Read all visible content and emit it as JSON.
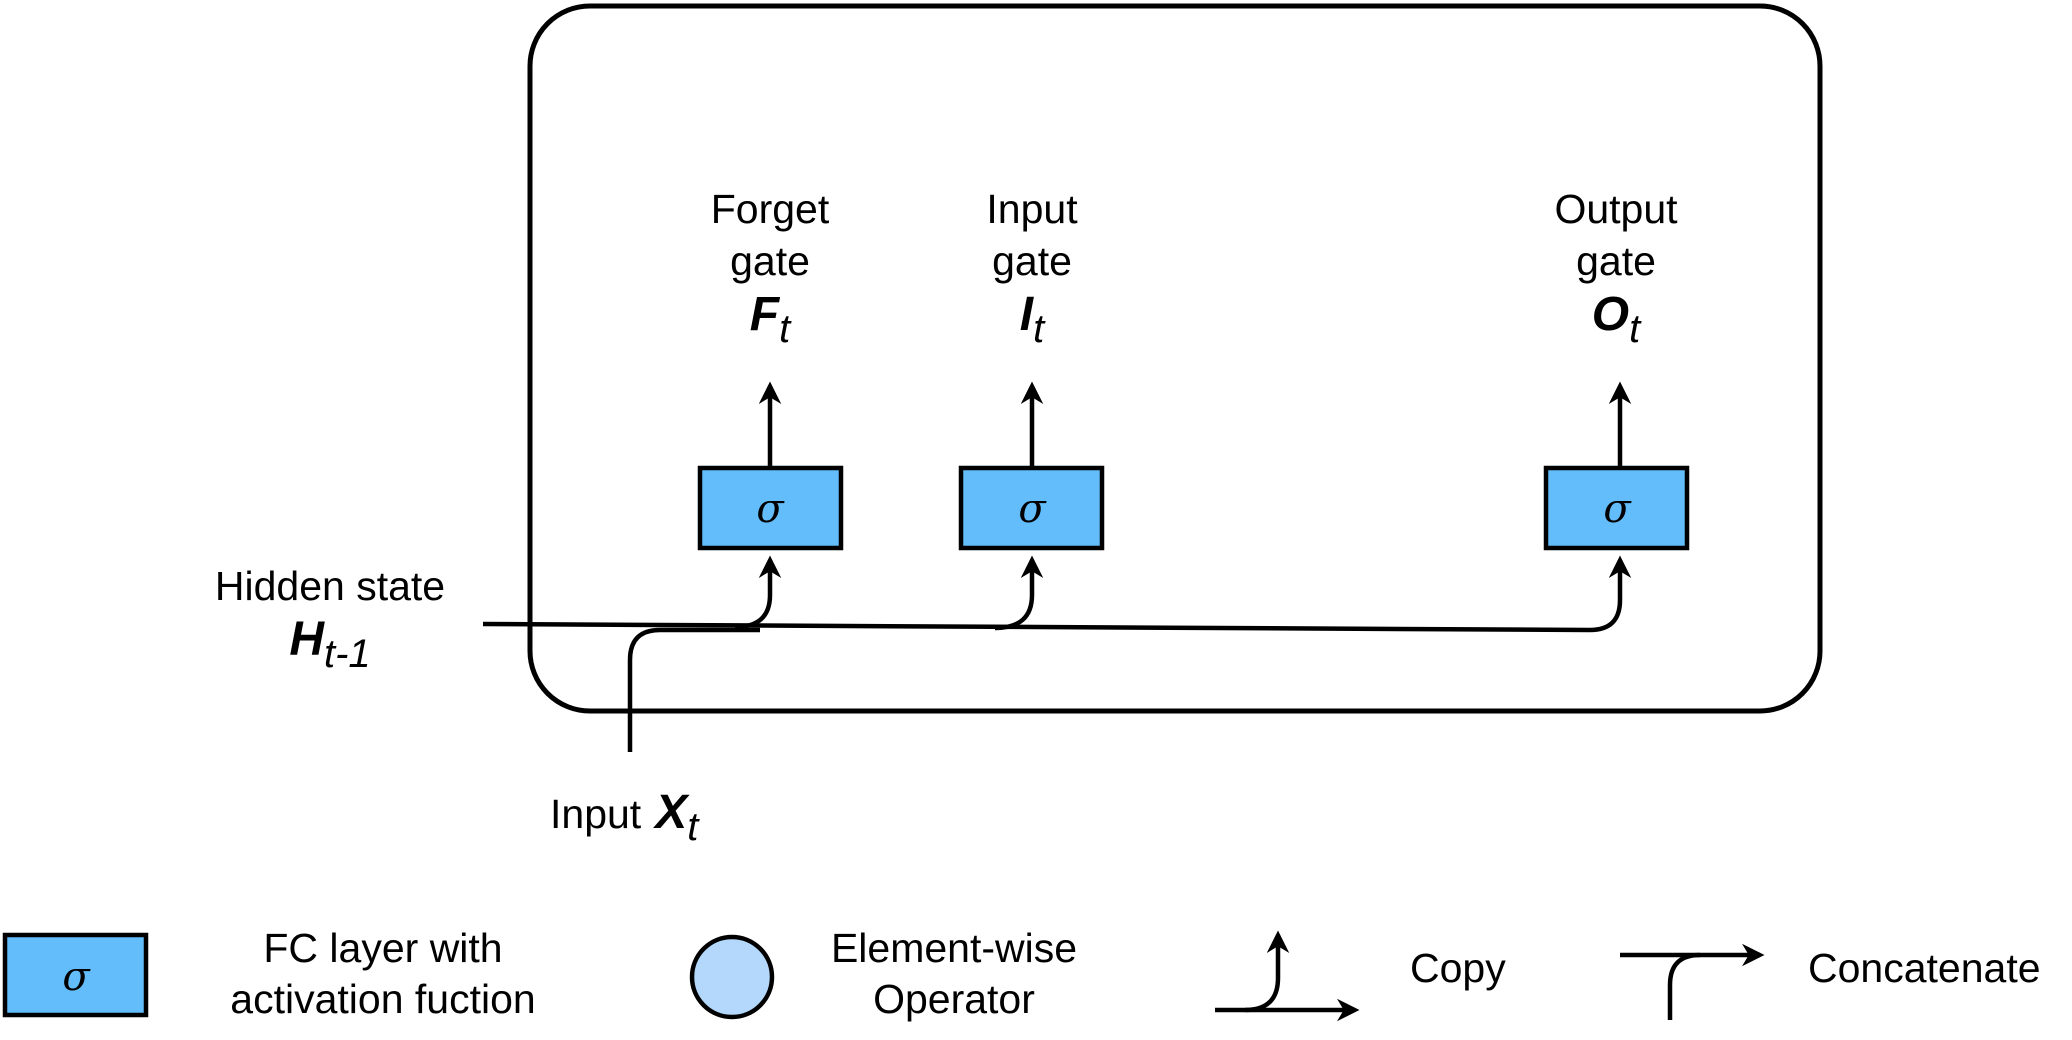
{
  "diagram": {
    "gates": [
      {
        "label_line1": "Forget",
        "label_line2": "gate",
        "symbol": "F",
        "subscript": "t",
        "activation": "σ"
      },
      {
        "label_line1": "Input",
        "label_line2": "gate",
        "symbol": "I",
        "subscript": "t",
        "activation": "σ"
      },
      {
        "label_line1": "Output",
        "label_line2": "gate",
        "symbol": "O",
        "subscript": "t",
        "activation": "σ"
      }
    ],
    "hidden_state": {
      "label": "Hidden state",
      "symbol": "H",
      "subscript": "t-1"
    },
    "input": {
      "label": "Input",
      "symbol": "X",
      "subscript": "t"
    }
  },
  "legend": {
    "fc_layer": {
      "symbol": "σ",
      "line1": "FC layer with",
      "line2": "activation fuction"
    },
    "elementwise": {
      "line1": "Element-wise",
      "line2": "Operator"
    },
    "copy": {
      "label": "Copy"
    },
    "concatenate": {
      "label": "Concatenate"
    }
  },
  "colors": {
    "gate_fill": "#63bdfa",
    "operator_fill": "#b3d8fb",
    "stroke": "#000000"
  }
}
